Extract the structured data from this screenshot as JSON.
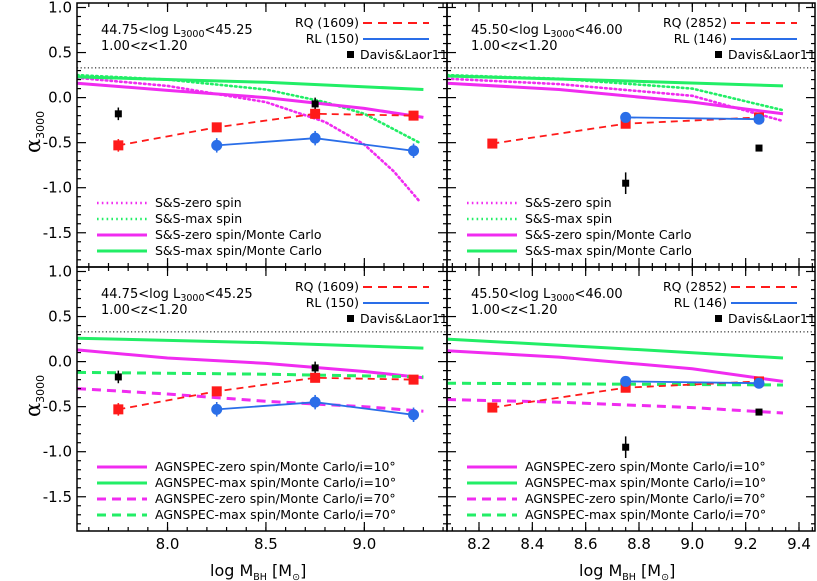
{
  "colors": {
    "rq": "#ff1a1a",
    "rl": "#2a6ee8",
    "magenta": "#f02cf0",
    "green": "#22ee66",
    "black": "#000000"
  },
  "chart_data": {
    "type": "line",
    "axes": {
      "ylabel": {
        "alpha": "α",
        "sub": "3000"
      },
      "xlabel": {
        "main": "log M",
        "sub": "BH",
        "unit_open": " [M",
        "unit_sub": "⊙",
        "unit_close": "]"
      },
      "ylim": [
        -1.88,
        1.05
      ],
      "yticks": [
        {
          "v": 1.0,
          "label": "1.0"
        },
        {
          "v": 0.5,
          "label": "0.5"
        },
        {
          "v": 0.0,
          "label": "0.0"
        },
        {
          "v": -0.5,
          "label": "-0.5"
        },
        {
          "v": -1.0,
          "label": "-1.0"
        },
        {
          "v": -1.5,
          "label": "-1.5"
        }
      ],
      "left_xlim": [
        7.54,
        9.42
      ],
      "left_xticks": [
        {
          "v": 8.0,
          "label": "8.0"
        },
        {
          "v": 8.5,
          "label": "8.5"
        },
        {
          "v": 9.0,
          "label": "9.0"
        }
      ],
      "right_xlim": [
        8.08,
        9.46
      ],
      "right_xticks": [
        {
          "v": 8.2,
          "label": "8.2"
        },
        {
          "v": 8.4,
          "label": "8.4"
        },
        {
          "v": 8.6,
          "label": "8.6"
        },
        {
          "v": 8.8,
          "label": "8.8"
        },
        {
          "v": 9.0,
          "label": "9.0"
        },
        {
          "v": 9.2,
          "label": "9.2"
        },
        {
          "v": 9.4,
          "label": "9.4"
        }
      ],
      "reference_line": 0.33
    },
    "panels": [
      {
        "id": "top-left",
        "bin_label": {
          "pre": "44.75<log L",
          "sub": "3000",
          "post": "<45.25"
        },
        "z_label": "1.00<z<1.20",
        "legend_top": [
          {
            "label": "RQ (1609)",
            "style": "rq"
          },
          {
            "label": "RL (150)",
            "style": "rl"
          },
          {
            "label": "Davis&Laor11",
            "style": "dl"
          }
        ],
        "legend_bottom": [
          {
            "label": "S&S-zero spin",
            "color": "magenta",
            "dash": "dot"
          },
          {
            "label": "S&S-max spin",
            "color": "green",
            "dash": "dot"
          },
          {
            "label": "S&S-zero spin/Monte Carlo",
            "color": "magenta",
            "dash": "solid"
          },
          {
            "label": "S&S-max spin/Monte Carlo",
            "color": "green",
            "dash": "solid"
          }
        ],
        "models": [
          {
            "color": "magenta",
            "dash": "dot",
            "x": [
              7.54,
              8.0,
              8.5,
              8.8,
              9.0,
              9.15,
              9.28
            ],
            "y": [
              0.22,
              0.13,
              -0.05,
              -0.27,
              -0.52,
              -0.82,
              -1.15
            ]
          },
          {
            "color": "green",
            "dash": "dot",
            "x": [
              7.54,
              8.0,
              8.5,
              8.8,
              9.0,
              9.28
            ],
            "y": [
              0.25,
              0.2,
              0.09,
              -0.05,
              -0.18,
              -0.5
            ]
          },
          {
            "color": "magenta",
            "dash": "solid",
            "x": [
              7.54,
              8.0,
              8.5,
              9.0,
              9.3
            ],
            "y": [
              0.16,
              0.08,
              0.0,
              -0.12,
              -0.22
            ]
          },
          {
            "color": "green",
            "dash": "solid",
            "x": [
              7.54,
              8.5,
              9.3
            ],
            "y": [
              0.23,
              0.17,
              0.09
            ]
          }
        ],
        "davis_laor": {
          "x": [
            7.75,
            8.75
          ],
          "y": [
            -0.18,
            -0.07
          ],
          "err": [
            0.07,
            0.07
          ]
        },
        "rq": {
          "x": [
            7.75,
            8.25,
            8.75,
            9.25
          ],
          "y": [
            -0.53,
            -0.33,
            -0.18,
            -0.2
          ],
          "err": [
            0.07,
            0.03,
            0.03,
            0.04
          ]
        },
        "rl": {
          "x": [
            8.25,
            8.75,
            9.25
          ],
          "y": [
            -0.53,
            -0.45,
            -0.59
          ],
          "err": [
            0.08,
            0.08,
            0.08
          ]
        }
      },
      {
        "id": "top-right",
        "bin_label": {
          "pre": "45.50<log L",
          "sub": "3000",
          "post": "<46.00"
        },
        "z_label": "1.00<z<1.20",
        "legend_top": [
          {
            "label": "RQ (2852)",
            "style": "rq"
          },
          {
            "label": "RL (146)",
            "style": "rl"
          },
          {
            "label": "Davis&Laor11",
            "style": "dl"
          }
        ],
        "legend_bottom": [
          {
            "label": "S&S-zero spin",
            "color": "magenta",
            "dash": "dot"
          },
          {
            "label": "S&S-max spin",
            "color": "green",
            "dash": "dot"
          },
          {
            "label": "S&S-zero spin/Monte Carlo",
            "color": "magenta",
            "dash": "solid"
          },
          {
            "label": "S&S-max spin/Monte Carlo",
            "color": "green",
            "dash": "solid"
          }
        ],
        "models": [
          {
            "color": "magenta",
            "dash": "dot",
            "x": [
              8.08,
              8.5,
              9.0,
              9.34
            ],
            "y": [
              0.21,
              0.15,
              0.02,
              -0.26
            ]
          },
          {
            "color": "green",
            "dash": "dot",
            "x": [
              8.08,
              8.5,
              9.0,
              9.34
            ],
            "y": [
              0.25,
              0.21,
              0.1,
              -0.14
            ]
          },
          {
            "color": "magenta",
            "dash": "solid",
            "x": [
              8.08,
              8.5,
              9.0,
              9.34
            ],
            "y": [
              0.16,
              0.09,
              -0.05,
              -0.18
            ]
          },
          {
            "color": "green",
            "dash": "solid",
            "x": [
              8.08,
              8.7,
              9.34
            ],
            "y": [
              0.24,
              0.19,
              0.13
            ]
          }
        ],
        "davis_laor": {
          "x": [
            8.75,
            9.25
          ],
          "y": [
            -0.95,
            -0.56
          ],
          "err": [
            0.12,
            0.02
          ]
        },
        "rq": {
          "x": [
            8.25,
            8.75,
            9.25
          ],
          "y": [
            -0.51,
            -0.29,
            -0.22
          ],
          "err": [
            0.02,
            0.03,
            0.03
          ]
        },
        "rl": {
          "x": [
            8.75,
            9.25
          ],
          "y": [
            -0.22,
            -0.24
          ],
          "err": [
            0.04,
            0.05
          ]
        }
      },
      {
        "id": "bottom-left",
        "bin_label": {
          "pre": "44.75<log L",
          "sub": "3000",
          "post": "<45.25"
        },
        "z_label": "1.00<z<1.20",
        "legend_top": [
          {
            "label": "RQ (1609)",
            "style": "rq"
          },
          {
            "label": "RL (150)",
            "style": "rl"
          },
          {
            "label": "Davis&Laor11",
            "style": "dl"
          }
        ],
        "legend_bottom": [
          {
            "label": "AGNSPEC-zero spin/Monte Carlo/i=10°",
            "color": "magenta",
            "dash": "solid"
          },
          {
            "label": "AGNSPEC-max spin/Monte Carlo/i=10°",
            "color": "green",
            "dash": "solid"
          },
          {
            "label": "AGNSPEC-zero spin/Monte Carlo/i=70°",
            "color": "magenta",
            "dash": "dash"
          },
          {
            "label": "AGNSPEC-max spin/Monte Carlo/i=70°",
            "color": "green",
            "dash": "dash"
          }
        ],
        "models": [
          {
            "color": "magenta",
            "dash": "solid",
            "x": [
              7.54,
              8.0,
              8.5,
              9.0,
              9.3
            ],
            "y": [
              0.13,
              0.04,
              -0.02,
              -0.11,
              -0.18
            ]
          },
          {
            "color": "green",
            "dash": "solid",
            "x": [
              7.54,
              8.5,
              9.3
            ],
            "y": [
              0.26,
              0.21,
              0.15
            ]
          },
          {
            "color": "magenta",
            "dash": "dash",
            "x": [
              7.54,
              8.0,
              8.5,
              9.0,
              9.3
            ],
            "y": [
              -0.3,
              -0.36,
              -0.44,
              -0.5,
              -0.55
            ]
          },
          {
            "color": "green",
            "dash": "dash",
            "x": [
              7.54,
              8.5,
              9.3
            ],
            "y": [
              -0.12,
              -0.14,
              -0.17
            ]
          }
        ],
        "davis_laor": {
          "x": [
            7.75,
            8.25,
            8.75
          ],
          "y": [
            -0.17,
            -0.52,
            -0.07
          ],
          "err": [
            0.07,
            0.07,
            0.07
          ]
        },
        "rq": {
          "x": [
            7.75,
            8.25,
            8.75,
            9.25
          ],
          "y": [
            -0.53,
            -0.33,
            -0.18,
            -0.2
          ],
          "err": [
            0.07,
            0.03,
            0.03,
            0.04
          ]
        },
        "rl": {
          "x": [
            8.25,
            8.75,
            9.25
          ],
          "y": [
            -0.53,
            -0.45,
            -0.59
          ],
          "err": [
            0.08,
            0.08,
            0.08
          ]
        }
      },
      {
        "id": "bottom-right",
        "bin_label": {
          "pre": "45.50<log L",
          "sub": "3000",
          "post": "<46.00"
        },
        "z_label": "1.00<z<1.20",
        "legend_top": [
          {
            "label": "RQ (2852)",
            "style": "rq"
          },
          {
            "label": "RL (146)",
            "style": "rl"
          },
          {
            "label": "Davis&Laor11",
            "style": "dl"
          }
        ],
        "legend_bottom": [
          {
            "label": "AGNSPEC-zero spin/Monte Carlo/i=10°",
            "color": "magenta",
            "dash": "solid"
          },
          {
            "label": "AGNSPEC-max spin/Monte Carlo/i=10°",
            "color": "green",
            "dash": "solid"
          },
          {
            "label": "AGNSPEC-zero spin/Monte Carlo/i=70°",
            "color": "magenta",
            "dash": "dash"
          },
          {
            "label": "AGNSPEC-max spin/Monte Carlo/i=70°",
            "color": "green",
            "dash": "dash"
          }
        ],
        "models": [
          {
            "color": "magenta",
            "dash": "solid",
            "x": [
              8.08,
              8.5,
              9.0,
              9.34
            ],
            "y": [
              0.12,
              0.05,
              -0.08,
              -0.22
            ]
          },
          {
            "color": "green",
            "dash": "solid",
            "x": [
              8.08,
              8.7,
              9.34
            ],
            "y": [
              0.25,
              0.15,
              0.04
            ]
          },
          {
            "color": "magenta",
            "dash": "dash",
            "x": [
              8.08,
              8.5,
              9.0,
              9.34
            ],
            "y": [
              -0.42,
              -0.45,
              -0.51,
              -0.57
            ]
          },
          {
            "color": "green",
            "dash": "dash",
            "x": [
              8.08,
              8.7,
              9.34
            ],
            "y": [
              -0.24,
              -0.25,
              -0.26
            ]
          }
        ],
        "davis_laor": {
          "x": [
            8.75,
            9.25
          ],
          "y": [
            -0.95,
            -0.56
          ],
          "err": [
            0.12,
            0.02
          ]
        },
        "rq": {
          "x": [
            8.25,
            8.75,
            9.25
          ],
          "y": [
            -0.51,
            -0.29,
            -0.22
          ],
          "err": [
            0.02,
            0.03,
            0.03
          ]
        },
        "rl": {
          "x": [
            8.75,
            9.25
          ],
          "y": [
            -0.22,
            -0.24
          ],
          "err": [
            0.04,
            0.05
          ]
        }
      }
    ]
  }
}
